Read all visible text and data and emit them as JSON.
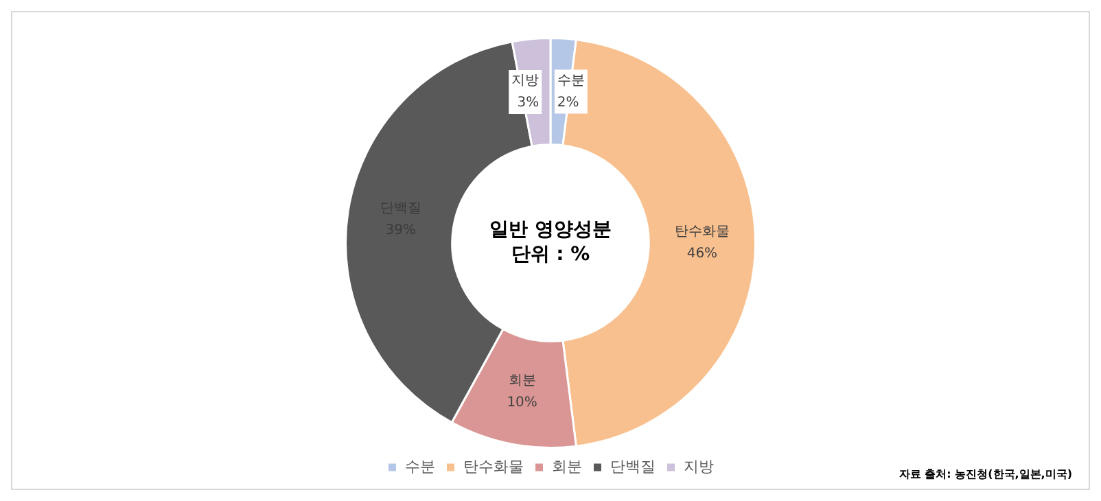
{
  "chart_data": {
    "type": "donut",
    "title": "일반 영양성분",
    "subtitle": "단위 : %",
    "categories": [
      "수분",
      "탄수화물",
      "회분",
      "단백질",
      "지방"
    ],
    "values": [
      2,
      46,
      10,
      39,
      3
    ],
    "colors": [
      "#b4c7e7",
      "#f8c08e",
      "#d99694",
      "#595959",
      "#ccc0da"
    ],
    "value_labels": [
      "2%",
      "46%",
      "10%",
      "39%",
      "3%"
    ],
    "legend": "bottom",
    "annotations": [
      "자료 출처: 농진청(한국,일본,미국)"
    ]
  }
}
